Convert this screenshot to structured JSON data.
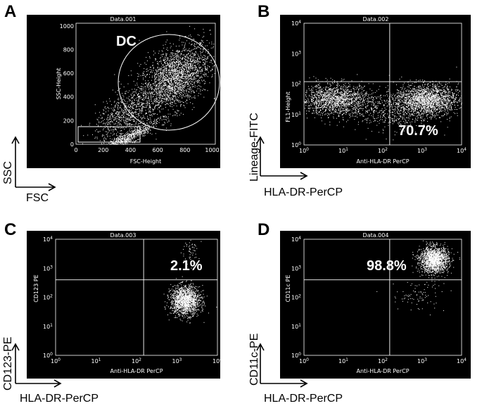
{
  "colors": {
    "background": "#000000",
    "foreground": "#ffffff",
    "page": "#ffffff"
  },
  "chart_data": [
    {
      "type": "scatter",
      "panel": "A",
      "title": "Data.001",
      "xlabel": "FSC-Height",
      "ylabel": "SSC-Height",
      "outer_xlabel": "FSC",
      "outer_ylabel": "SSC",
      "xlim": [
        0,
        1023
      ],
      "ylim": [
        0,
        1023
      ],
      "xticks": [
        "0",
        "200",
        "400",
        "600",
        "800",
        "1000"
      ],
      "yticks": [
        "0",
        "200",
        "400",
        "600",
        "800",
        "1000"
      ],
      "gate_label": "DC",
      "populations": [
        {
          "x": 720,
          "y": 560,
          "spread": [
            130,
            130
          ],
          "count": 2400
        },
        {
          "x": 360,
          "y": 260,
          "spread": [
            110,
            90
          ],
          "count": 700
        },
        {
          "x": 380,
          "y": 60,
          "spread": [
            110,
            25
          ],
          "count": 700
        }
      ]
    },
    {
      "type": "scatter",
      "panel": "B",
      "title": "Data.002",
      "xlabel": "Anti-HLA-DR PerCP",
      "ylabel": "FL1-Height",
      "outer_xlabel": "HLA-DR-PerCP",
      "outer_ylabel": "Lineage-FITC",
      "xscale": "log",
      "yscale": "log",
      "xlim": [
        1,
        10000
      ],
      "ylim": [
        1,
        10000
      ],
      "quadrant": {
        "x": 150,
        "y": 120
      },
      "annotation": "70.7%",
      "populations": [
        {
          "logx": 0.8,
          "logy": 1.5,
          "spread": [
            0.45,
            0.25
          ],
          "count": 1500
        },
        {
          "logx": 3.1,
          "logy": 1.5,
          "spread": [
            0.4,
            0.25
          ],
          "count": 1900
        },
        {
          "logx": 2.2,
          "logy": 1.1,
          "spread": [
            0.6,
            0.3
          ],
          "count": 500
        }
      ]
    },
    {
      "type": "scatter",
      "panel": "C",
      "title": "Data.003",
      "xlabel": "Anti-HLA-DR PerCP",
      "ylabel": "CD123 PE",
      "outer_xlabel": "HLA-DR-PerCP",
      "outer_ylabel": "CD123-PE",
      "xscale": "log",
      "yscale": "log",
      "xlim": [
        1,
        10000
      ],
      "ylim": [
        1,
        10000
      ],
      "quadrant": {
        "x": 150,
        "y": 400
      },
      "annotation": "2.1%",
      "populations": [
        {
          "logx": 3.2,
          "logy": 1.9,
          "spread": [
            0.18,
            0.25
          ],
          "count": 1600
        },
        {
          "logx": 3.3,
          "logy": 3.6,
          "spread": [
            0.12,
            0.25
          ],
          "count": 60
        }
      ]
    },
    {
      "type": "scatter",
      "panel": "D",
      "title": "Data.004",
      "xlabel": "Anti-HLA-DR PerCP",
      "ylabel": "CD11c PE",
      "outer_xlabel": "HLA-DR-PerCP",
      "outer_ylabel": "CD11c-PE",
      "xscale": "log",
      "yscale": "log",
      "xlim": [
        1,
        10000
      ],
      "ylim": [
        1,
        10000
      ],
      "quadrant": {
        "x": 150,
        "y": 400
      },
      "annotation": "98.8%",
      "populations": [
        {
          "logx": 3.3,
          "logy": 3.3,
          "spread": [
            0.18,
            0.22
          ],
          "count": 1700
        },
        {
          "logx": 2.9,
          "logy": 2.1,
          "spread": [
            0.35,
            0.3
          ],
          "count": 90
        }
      ]
    }
  ]
}
